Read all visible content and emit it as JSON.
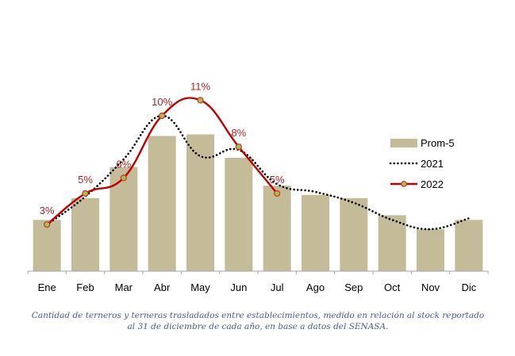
{
  "chart_data": {
    "type": "bar+line",
    "title": "",
    "xlabel": "",
    "ylabel": "",
    "ylim": [
      0,
      12
    ],
    "grid": false,
    "categories": [
      "Ene",
      "Feb",
      "Mar",
      "Abr",
      "May",
      "Jun",
      "Jul",
      "Ago",
      "Sep",
      "Oct",
      "Nov",
      "Dic"
    ],
    "series": [
      {
        "name": "Prom-5",
        "kind": "bar",
        "color": "#c4bb98",
        "values": [
          3.3,
          4.7,
          6.7,
          8.7,
          8.8,
          7.3,
          5.5,
          4.9,
          4.7,
          3.6,
          2.7,
          3.3
        ]
      },
      {
        "name": "2021",
        "kind": "line-dotted",
        "color": "#000000",
        "values": [
          3.0,
          4.8,
          7.2,
          10.0,
          7.4,
          7.8,
          5.6,
          5.1,
          4.4,
          3.3,
          2.7,
          3.4
        ]
      },
      {
        "name": "2022",
        "kind": "line-markers",
        "color": "#c00000",
        "marker_color": "#b5b84a",
        "values": [
          3,
          5,
          6,
          10,
          11,
          8,
          5,
          null,
          null,
          null,
          null,
          null
        ],
        "data_labels": [
          "3%",
          "5%",
          "6%",
          "10%",
          "11%",
          "8%",
          "5%"
        ]
      }
    ],
    "legend": {
      "position": "right",
      "entries": [
        "Prom-5",
        "2021",
        "2022"
      ]
    }
  },
  "caption": {
    "line1": "Cantidad de terneros y terneras trasladados entre establecimientos, medido en relación al stock reportado",
    "line2": "al 31 de diciembre de cada año, en base a datos del SENASA."
  }
}
